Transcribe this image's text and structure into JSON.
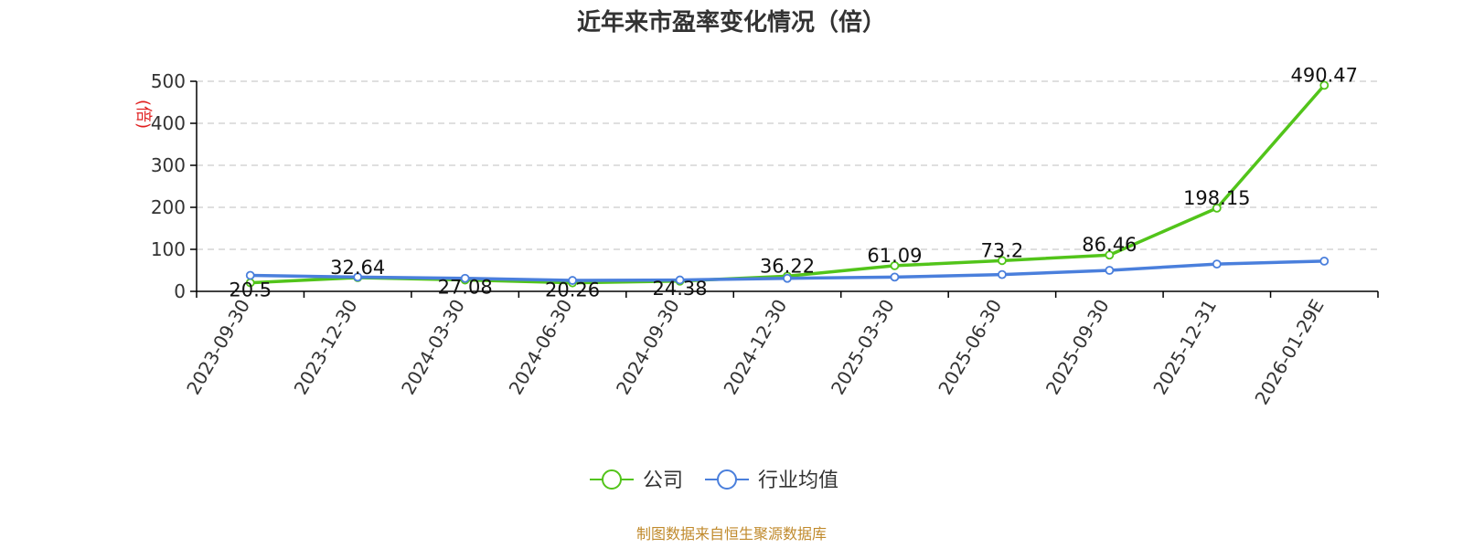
{
  "chart_data": {
    "type": "line",
    "title": "近年来市盈率变化情况（倍）",
    "unit_label": "(倍)",
    "source": "制图数据来自恒生聚源数据库",
    "categories": [
      "2023-09-30",
      "2023-12-30",
      "2024-03-30",
      "2024-06-30",
      "2024-09-30",
      "2024-12-30",
      "2025-03-30",
      "2025-06-30",
      "2025-09-30",
      "2025-12-31",
      "2026-01-29E"
    ],
    "y_ticks": [
      "0",
      "100",
      "200",
      "300",
      "400",
      "500"
    ],
    "ylim": [
      0,
      500
    ],
    "grid": true,
    "legend_position": "bottom",
    "series": [
      {
        "name": "公司",
        "color": "#52c41a",
        "values": [
          20.5,
          32.64,
          27.08,
          20.26,
          24.38,
          36.22,
          61.09,
          73.2,
          86.46,
          198.15,
          490.47
        ],
        "labels": [
          "20.5",
          "32.64",
          "27.08",
          "20.26",
          "24.38",
          "36.22",
          "61.09",
          "73.2",
          "86.46",
          "198.15",
          "490.47"
        ]
      },
      {
        "name": "行业均值",
        "color": "#4a7fdc",
        "values": [
          38,
          34,
          31,
          26,
          27,
          31,
          34,
          40,
          50,
          65,
          72
        ]
      }
    ]
  }
}
